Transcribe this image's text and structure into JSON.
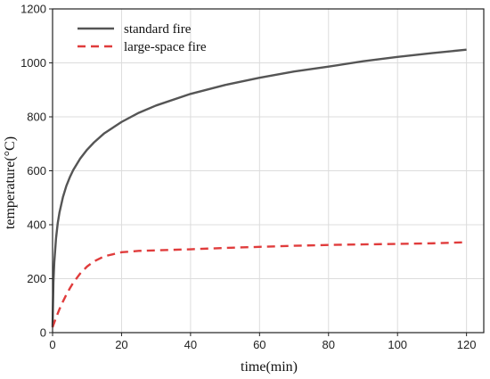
{
  "chart_data": {
    "type": "line",
    "title": "",
    "xlabel": "time(min)",
    "ylabel": "temperature(°C)",
    "xlim": [
      0,
      125
    ],
    "ylim": [
      0,
      1200
    ],
    "xticks": [
      0,
      20,
      40,
      60,
      80,
      100,
      120
    ],
    "yticks": [
      0,
      200,
      400,
      600,
      800,
      1000,
      1200
    ],
    "grid": true,
    "legend_position": "top-left",
    "series": [
      {
        "name": "standard fire",
        "color": "#555555",
        "style": "solid",
        "x": [
          0,
          0.25,
          0.5,
          1,
          1.5,
          2,
          3,
          4,
          5,
          6,
          8,
          10,
          12,
          15,
          20,
          25,
          30,
          40,
          50,
          60,
          70,
          80,
          90,
          100,
          110,
          120
        ],
        "y": [
          20,
          186,
          261,
          349,
          406,
          445,
          502,
          544,
          576,
          603,
          645,
          678,
          705,
          739,
          781,
          815,
          842,
          885,
          918,
          945,
          968,
          986,
          1006,
          1022,
          1036,
          1049
        ]
      },
      {
        "name": "large-space fire",
        "color": "#e03c3c",
        "style": "dashed",
        "x": [
          0,
          1,
          2,
          3,
          4,
          5,
          6,
          8,
          10,
          12,
          15,
          20,
          25,
          30,
          40,
          50,
          60,
          70,
          80,
          90,
          100,
          110,
          120
        ],
        "y": [
          20,
          55,
          87,
          115,
          141,
          164,
          185,
          219,
          245,
          264,
          283,
          298,
          303,
          305,
          309,
          314,
          318,
          322,
          325,
          327,
          329,
          331,
          335
        ]
      }
    ]
  }
}
